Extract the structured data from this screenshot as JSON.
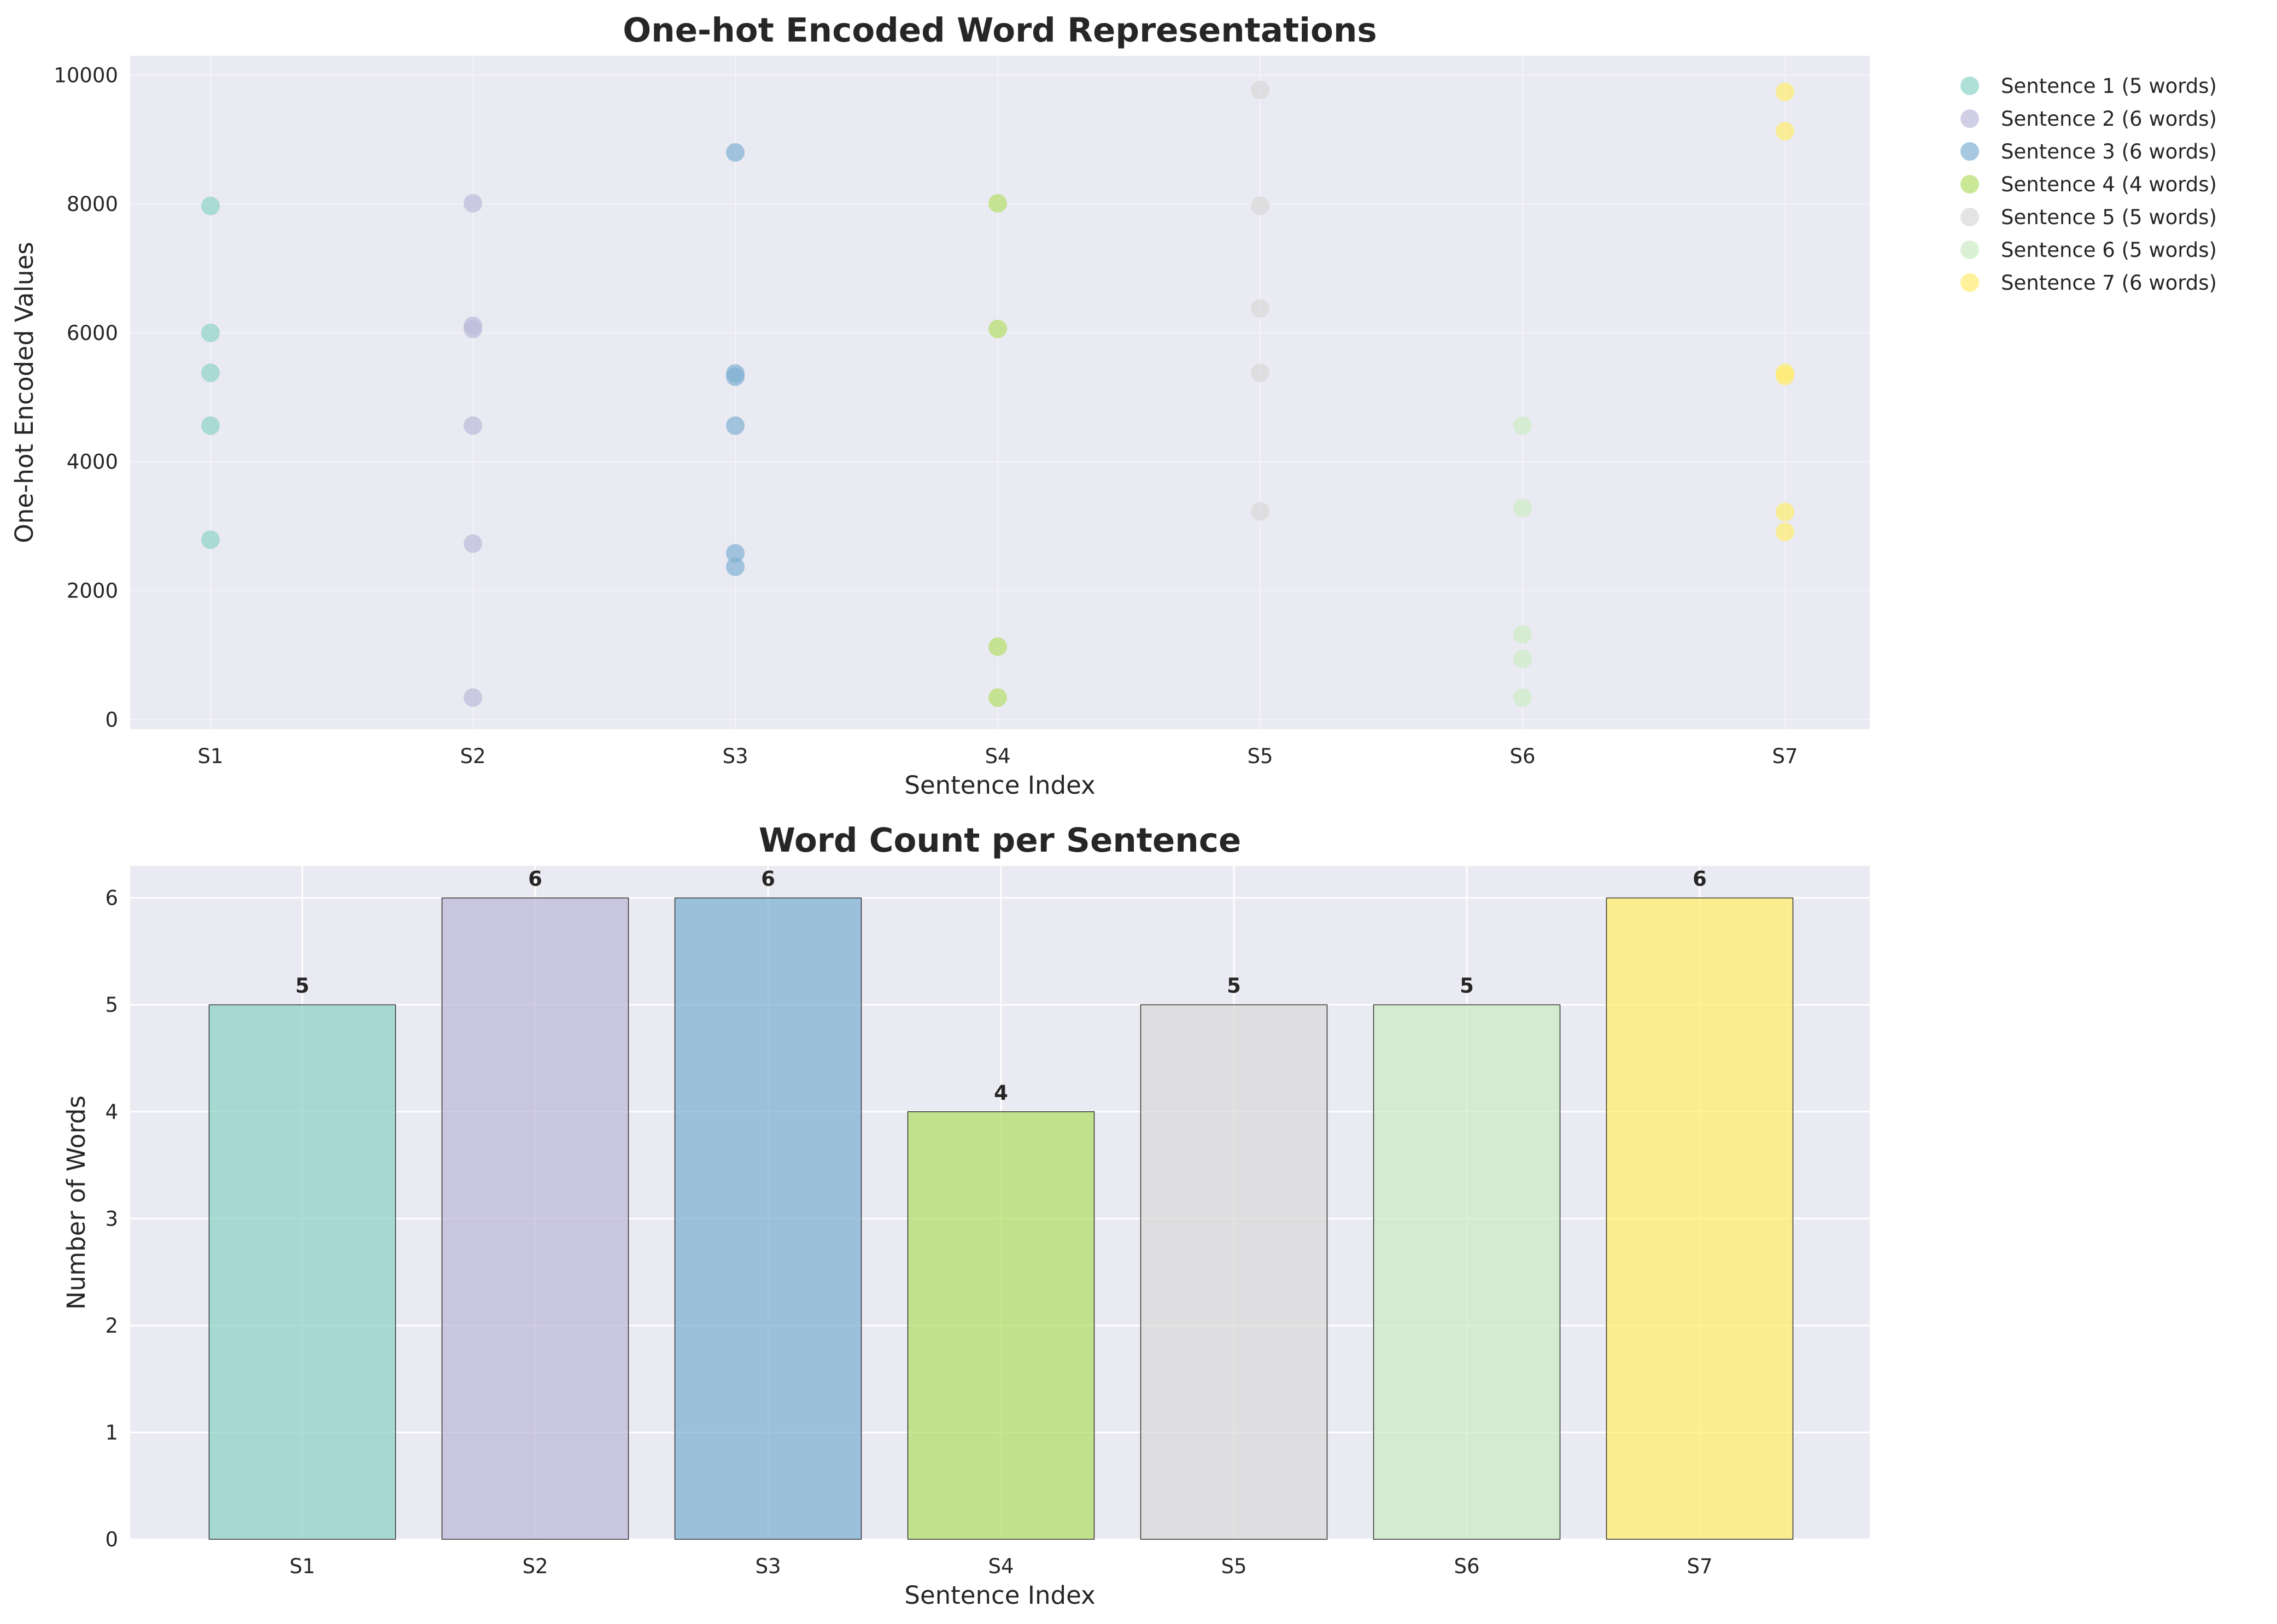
{
  "chart_data": [
    {
      "type": "scatter",
      "title": "One-hot Encoded Word Representations",
      "xlabel": "Sentence Index",
      "ylabel": "One-hot Encoded Values",
      "categories": [
        "S1",
        "S2",
        "S3",
        "S4",
        "S5",
        "S6",
        "S7"
      ],
      "ylim": [
        -150,
        10300
      ],
      "yticks": [
        0,
        2000,
        4000,
        6000,
        8000,
        10000
      ],
      "grid": true,
      "legend_position": "outside-top-right",
      "series": [
        {
          "name": "Sentence 1 (5 words)",
          "x": "S1",
          "color": "#8dd3c7",
          "values": [
            7970,
            6000,
            5380,
            4560,
            2790
          ]
        },
        {
          "name": "Sentence 2 (6 words)",
          "x": "S2",
          "color": "#bebada",
          "values": [
            8010,
            6110,
            6060,
            4560,
            2730,
            340
          ]
        },
        {
          "name": "Sentence 3 (6 words)",
          "x": "S3",
          "color": "#80b1d3",
          "values": [
            8800,
            5370,
            5320,
            4560,
            2580,
            2370
          ]
        },
        {
          "name": "Sentence 4 (4 words)",
          "x": "S4",
          "color": "#b3de69",
          "values": [
            8010,
            6060,
            1130,
            340
          ]
        },
        {
          "name": "Sentence 5 (5 words)",
          "x": "S5",
          "color": "#d9d9d9",
          "values": [
            9770,
            7970,
            6380,
            5380,
            3230
          ]
        },
        {
          "name": "Sentence 6 (5 words)",
          "x": "S6",
          "color": "#ccebc5",
          "values": [
            4560,
            3280,
            1320,
            940,
            340
          ]
        },
        {
          "name": "Sentence 7 (6 words)",
          "x": "S7",
          "color": "#ffed6f",
          "values": [
            9740,
            9130,
            5380,
            5330,
            3220,
            2910
          ]
        }
      ]
    },
    {
      "type": "bar",
      "title": "Word Count per Sentence",
      "xlabel": "Sentence Index",
      "ylabel": "Number of Words",
      "categories": [
        "S1",
        "S2",
        "S3",
        "S4",
        "S5",
        "S6",
        "S7"
      ],
      "values": [
        5,
        6,
        6,
        4,
        5,
        5,
        6
      ],
      "colors": [
        "#8dd3c7",
        "#bebada",
        "#80b1d3",
        "#b3de69",
        "#d9d9d9",
        "#ccebc5",
        "#ffed6f"
      ],
      "ylim": [
        0,
        6.3
      ],
      "yticks": [
        0,
        1,
        2,
        3,
        4,
        5,
        6
      ],
      "grid": true,
      "data_labels": true
    }
  ],
  "style": {
    "axes_background": "#eaeaf2",
    "grid_color": "#ffffff",
    "text_color": "#262626"
  }
}
